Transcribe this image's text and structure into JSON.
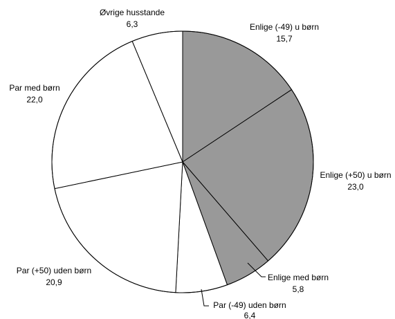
{
  "chart_data": {
    "type": "pie",
    "start": "top, clockwise",
    "slices": [
      {
        "label": "Enlige (-49) u børn",
        "value_text": "15,7",
        "value": 15.7,
        "color": "#999999"
      },
      {
        "label": "Enlige (+50) u børn",
        "value_text": "23,0",
        "value": 23.0,
        "color": "#999999"
      },
      {
        "label": "Enlige med børn",
        "value_text": "5,8",
        "value": 5.8,
        "color": "#999999"
      },
      {
        "label": "Par (-49) uden børn",
        "value_text": "6,4",
        "value": 6.4,
        "color": "#ffffff"
      },
      {
        "label": "Par (+50) uden børn",
        "value_text": "20,9",
        "value": 20.9,
        "color": "#ffffff"
      },
      {
        "label": "Par med børn",
        "value_text": "22,0",
        "value": 22.0,
        "color": "#ffffff"
      },
      {
        "label": "Øvrige husstande",
        "value_text": "6,3",
        "value": 6.3,
        "color": "#ffffff"
      }
    ]
  }
}
